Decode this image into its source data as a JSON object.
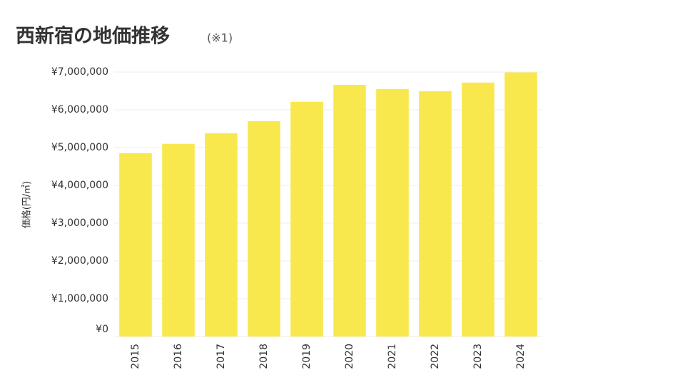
{
  "chart_data": {
    "type": "bar",
    "title": "西新宿の地価推移",
    "subtitle": "(※1)",
    "y_label": "価格(円/㎡)",
    "categories": [
      "2015",
      "2016",
      "2017",
      "2018",
      "2019",
      "2020",
      "2021",
      "2022",
      "2023",
      "2024"
    ],
    "values": [
      4850000,
      5100000,
      5380000,
      5700000,
      6210000,
      6660000,
      6550000,
      6490000,
      6720000,
      6990000
    ],
    "color": "#f8e84e",
    "ylim": [
      0,
      7000000
    ],
    "yticks": [
      {
        "value": 0,
        "label": "¥0"
      },
      {
        "value": 1000000,
        "label": "¥1,000,000"
      },
      {
        "value": 2000000,
        "label": "¥2,000,000"
      },
      {
        "value": 3000000,
        "label": "¥3,000,000"
      },
      {
        "value": 4000000,
        "label": "¥4,000,000"
      },
      {
        "value": 5000000,
        "label": "¥5,000,000"
      },
      {
        "value": 6000000,
        "label": "¥6,000,000"
      },
      {
        "value": 7000000,
        "label": "¥7,000,000"
      }
    ],
    "grid": true
  }
}
